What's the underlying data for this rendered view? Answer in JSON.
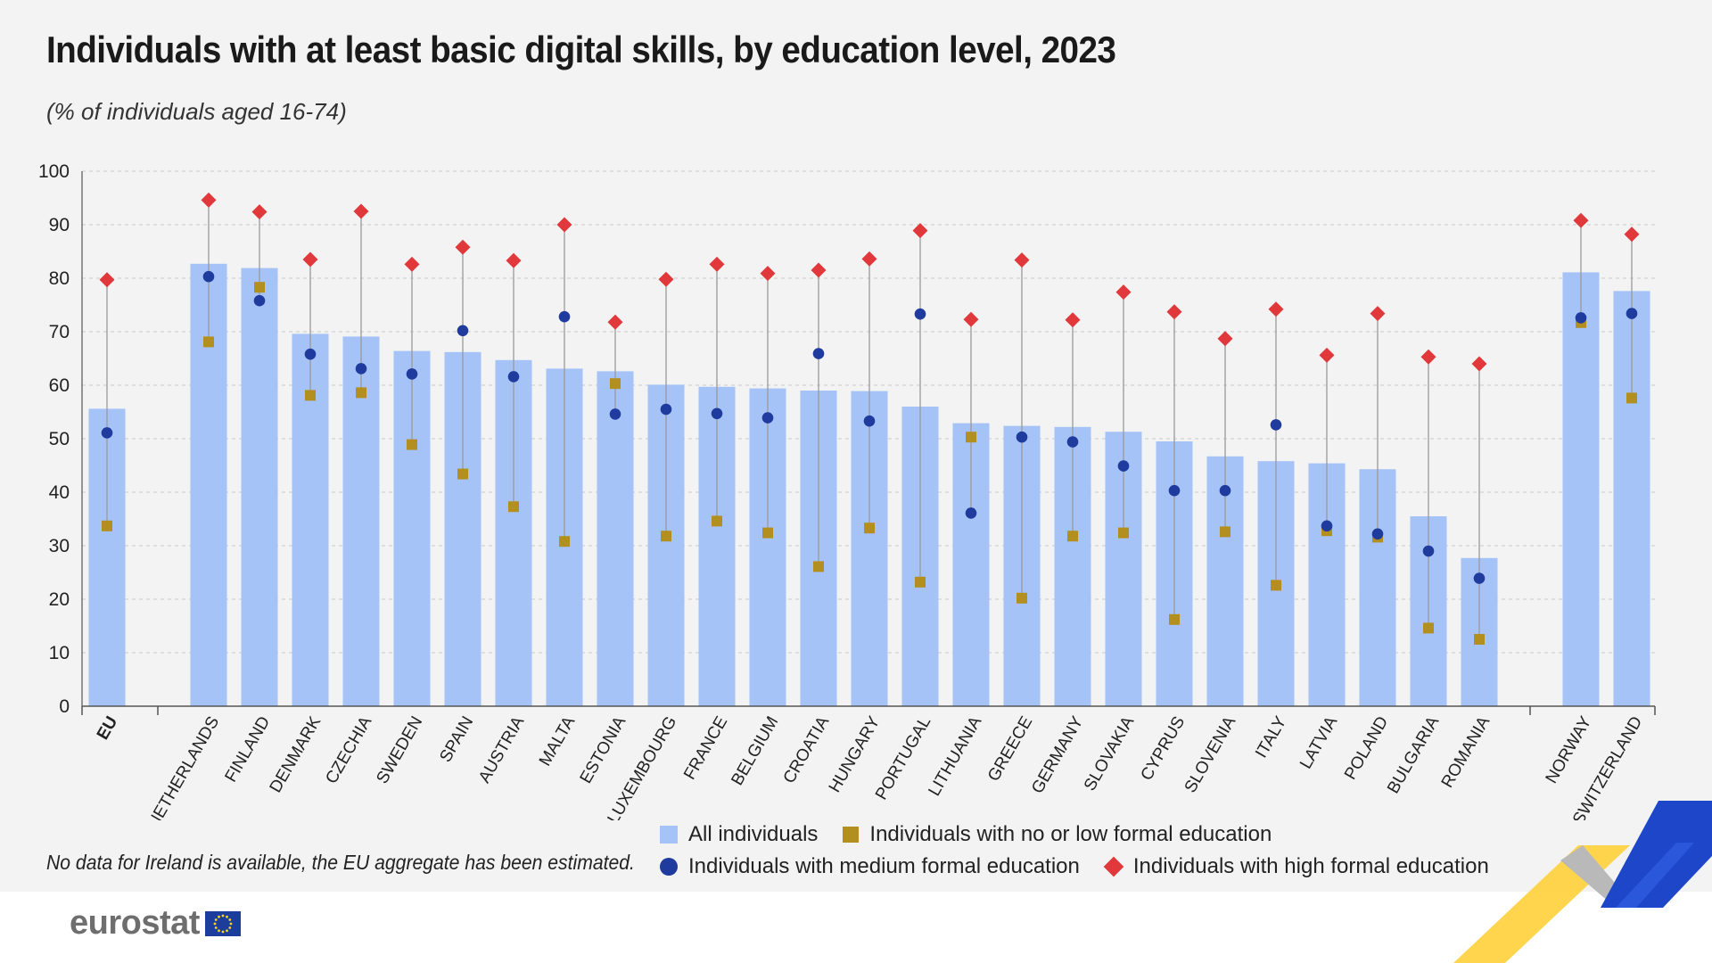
{
  "title": "Individuals with at least basic digital skills, by education level, 2023",
  "subtitle": "(% of individuals aged 16-74)",
  "note": "No data for Ireland is available, the EU aggregate has been estimated.",
  "logo": {
    "text": "eurostat",
    "flag_icon": "eu-flag-icon"
  },
  "colors": {
    "all": "#a5c3f7",
    "low": "#b38f1f",
    "medium": "#1f3b9e",
    "high": "#e1383b",
    "grid": "#c9c9c9",
    "axis": "#555555"
  },
  "chart_data": {
    "type": "bar",
    "title": "Individuals with at least basic digital skills, by education level, 2023",
    "subtitle": "(% of individuals aged 16-74)",
    "xlabel": "",
    "ylabel": "",
    "ylim": [
      0,
      100
    ],
    "yticks": [
      0,
      10,
      20,
      30,
      40,
      50,
      60,
      70,
      80,
      90,
      100
    ],
    "grid": true,
    "legend_position": "bottom",
    "groups": [
      {
        "name": "eu",
        "categories": [
          "EU"
        ]
      },
      {
        "name": "countries",
        "categories": [
          "NETHERLANDS",
          "FINLAND",
          "DENMARK",
          "CZECHIA",
          "SWEDEN",
          "SPAIN",
          "AUSTRIA",
          "MALTA",
          "ESTONIA",
          "LUXEMBOURG",
          "FRANCE",
          "BELGIUM",
          "CROATIA",
          "HUNGARY",
          "PORTUGAL",
          "LITHUANIA",
          "GREECE",
          "GERMANY",
          "SLOVAKIA",
          "CYPRUS",
          "SLOVENIA",
          "ITALY",
          "LATVIA",
          "POLAND",
          "BULGARIA",
          "ROMANIA"
        ]
      },
      {
        "name": "efta",
        "categories": [
          "NORWAY",
          "SWITZERLAND"
        ]
      }
    ],
    "categories": [
      "EU",
      "NETHERLANDS",
      "FINLAND",
      "DENMARK",
      "CZECHIA",
      "SWEDEN",
      "SPAIN",
      "AUSTRIA",
      "MALTA",
      "ESTONIA",
      "LUXEMBOURG",
      "FRANCE",
      "BELGIUM",
      "CROATIA",
      "HUNGARY",
      "PORTUGAL",
      "LITHUANIA",
      "GREECE",
      "GERMANY",
      "SLOVAKIA",
      "CYPRUS",
      "SLOVENIA",
      "ITALY",
      "LATVIA",
      "POLAND",
      "BULGARIA",
      "ROMANIA",
      "NORWAY",
      "SWITZERLAND"
    ],
    "series": [
      {
        "name": "All individuals",
        "mark": "bar",
        "values": [
          55.6,
          82.7,
          81.9,
          69.6,
          69.1,
          66.4,
          66.2,
          64.7,
          63.1,
          62.6,
          60.1,
          59.7,
          59.4,
          59.0,
          58.9,
          56.0,
          52.9,
          52.4,
          52.2,
          51.3,
          49.5,
          46.7,
          45.8,
          45.4,
          44.3,
          35.5,
          27.7,
          81.1,
          77.6
        ]
      },
      {
        "name": "Individuals with no or low formal education",
        "mark": "square",
        "values": [
          33.7,
          68.1,
          78.3,
          58.1,
          58.6,
          48.9,
          43.4,
          37.3,
          30.8,
          60.3,
          31.8,
          34.6,
          32.4,
          26.1,
          33.3,
          23.2,
          50.3,
          20.2,
          31.8,
          32.4,
          16.2,
          32.6,
          22.6,
          32.8,
          31.6,
          14.6,
          12.5,
          71.7,
          57.6
        ]
      },
      {
        "name": "Individuals with medium formal education",
        "mark": "circle",
        "values": [
          51.1,
          80.3,
          75.8,
          65.8,
          63.1,
          62.1,
          70.2,
          61.6,
          72.8,
          54.6,
          55.5,
          54.7,
          53.9,
          65.9,
          53.3,
          73.3,
          36.1,
          50.3,
          49.4,
          44.9,
          40.3,
          40.3,
          52.6,
          33.7,
          32.2,
          29.0,
          23.9,
          72.6,
          73.4
        ]
      },
      {
        "name": "Individuals with high formal education",
        "mark": "diamond",
        "values": [
          79.7,
          94.6,
          92.4,
          83.5,
          92.5,
          82.6,
          85.8,
          83.3,
          90.0,
          71.8,
          79.8,
          82.6,
          80.9,
          81.5,
          83.6,
          88.9,
          72.3,
          83.4,
          72.2,
          77.4,
          73.7,
          68.7,
          74.2,
          65.6,
          73.4,
          65.3,
          64.0,
          90.8,
          88.2
        ]
      }
    ]
  }
}
